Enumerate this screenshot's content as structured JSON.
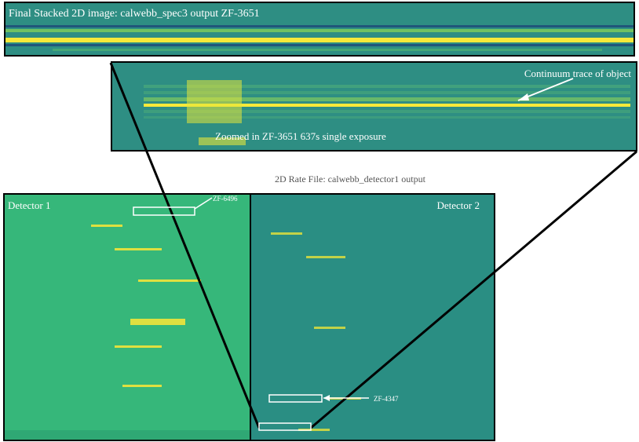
{
  "top_panel": {
    "title": "Final Stacked 2D image: calwebb_spec3 output ZF-3651"
  },
  "zoom_panel": {
    "annotation": "Continuum trace of object",
    "caption": "Zoomed in ZF-3651 637s single exposure"
  },
  "rate_caption": "2D Rate File: calwebb_detector1 output",
  "detector1": {
    "label": "Detector 1",
    "source_label": "ZF-6496"
  },
  "detector2": {
    "label": "Detector 2",
    "source_label": "ZF-4347"
  },
  "colors": {
    "detector1_bg": "#36b77a",
    "detector2_bg": "#2a8e83",
    "spectra_bg": "#2e8e83",
    "trace": "#f6e93a",
    "border": "#000000",
    "box": "#ffffff"
  }
}
